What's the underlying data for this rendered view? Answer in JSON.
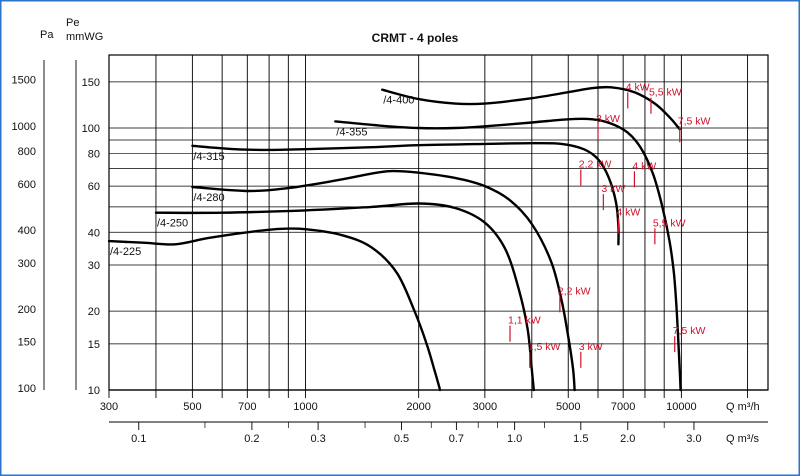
{
  "chart_data": {
    "type": "line",
    "title": "CRMT  -  4 poles",
    "x_axis": {
      "label": "Q m³/h",
      "scale": "log",
      "range": [
        300,
        17000
      ],
      "ticks": [
        300,
        500,
        700,
        1000,
        2000,
        3000,
        5000,
        7000,
        10000
      ],
      "tick_labels": [
        "300",
        "500",
        "700",
        "1000",
        "2000",
        "3000",
        "5000",
        "7000",
        "10000"
      ]
    },
    "x2_axis": {
      "label": "Q m³/s",
      "scale": "log",
      "ticks": [
        0.1,
        0.2,
        0.3,
        0.5,
        0.7,
        1.0,
        1.5,
        2.0,
        3.0
      ],
      "tick_labels": [
        "0.1",
        "0.2",
        "0.3",
        "0.5",
        "0.7",
        "1.0",
        "1.5",
        "2.0",
        "3.0"
      ]
    },
    "y_axis": {
      "label": "Pe mmWG",
      "scale": "log",
      "range": [
        10,
        190
      ],
      "ticks": [
        10,
        15,
        20,
        30,
        40,
        60,
        80,
        100,
        150
      ],
      "tick_labels": [
        "10",
        "15",
        "20",
        "30",
        "40",
        "60",
        "80",
        "100",
        "150"
      ]
    },
    "y2_axis": {
      "label": "Pa",
      "ticks": [
        100,
        150,
        200,
        300,
        400,
        600,
        800,
        1000,
        1500
      ],
      "tick_labels": [
        "100",
        "150",
        "200",
        "300",
        "400",
        "600",
        "800",
        "1000",
        "1500"
      ]
    },
    "grid": true,
    "series": [
      {
        "name": "/4-225",
        "points": [
          [
            300,
            37
          ],
          [
            370,
            36.5
          ],
          [
            450,
            36
          ],
          [
            550,
            38
          ],
          [
            700,
            40
          ],
          [
            850,
            41.2
          ],
          [
            1000,
            41.1
          ],
          [
            1250,
            39
          ],
          [
            1500,
            35
          ],
          [
            1750,
            28
          ],
          [
            1950,
            20
          ],
          [
            2100,
            15
          ],
          [
            2200,
            12
          ],
          [
            2280,
            10
          ]
        ]
      },
      {
        "name": "/4-250",
        "points": [
          [
            400,
            47.5
          ],
          [
            600,
            47.5
          ],
          [
            1000,
            48.5
          ],
          [
            1500,
            50
          ],
          [
            2000,
            51.5
          ],
          [
            2500,
            49.5
          ],
          [
            3000,
            43.5
          ],
          [
            3400,
            34.5
          ],
          [
            3700,
            24
          ],
          [
            3900,
            17
          ],
          [
            4000,
            12
          ],
          [
            4050,
            10
          ]
        ]
      },
      {
        "name": "/4-280",
        "points": [
          [
            500,
            59.5
          ],
          [
            700,
            57.5
          ],
          [
            900,
            59
          ],
          [
            1200,
            63
          ],
          [
            1500,
            67
          ],
          [
            1700,
            68.5
          ],
          [
            2000,
            67.5
          ],
          [
            2500,
            64.5
          ],
          [
            3000,
            60
          ],
          [
            3500,
            53
          ],
          [
            4000,
            43
          ],
          [
            4500,
            31
          ],
          [
            4800,
            22
          ],
          [
            5000,
            16
          ],
          [
            5150,
            12
          ],
          [
            5200,
            10
          ]
        ]
      },
      {
        "name": "/4-315",
        "points": [
          [
            500,
            85.5
          ],
          [
            650,
            83
          ],
          [
            800,
            82.5
          ],
          [
            1000,
            83
          ],
          [
            1500,
            84.5
          ],
          [
            2000,
            86
          ],
          [
            3000,
            87
          ],
          [
            4000,
            87.5
          ],
          [
            4800,
            87
          ],
          [
            5500,
            83
          ],
          [
            6000,
            76
          ],
          [
            6400,
            65
          ],
          [
            6700,
            52
          ],
          [
            6800,
            42
          ],
          [
            6800,
            36
          ]
        ]
      },
      {
        "name": "/4-355",
        "points": [
          [
            1200,
            106
          ],
          [
            1600,
            102
          ],
          [
            2000,
            100
          ],
          [
            2500,
            100
          ],
          [
            3000,
            101.5
          ],
          [
            4000,
            105
          ],
          [
            5000,
            108
          ],
          [
            5800,
            108
          ],
          [
            6500,
            104
          ],
          [
            7200,
            96
          ],
          [
            7800,
            84
          ],
          [
            8400,
            67
          ],
          [
            8900,
            50
          ],
          [
            9300,
            37
          ],
          [
            9550,
            28
          ],
          [
            9700,
            21
          ],
          [
            9800,
            16
          ],
          [
            9900,
            12
          ],
          [
            9950,
            10
          ]
        ]
      },
      {
        "name": "/4-400",
        "points": [
          [
            1600,
            140
          ],
          [
            2000,
            129
          ],
          [
            2500,
            124
          ],
          [
            3000,
            124
          ],
          [
            4000,
            130
          ],
          [
            5000,
            137
          ],
          [
            5800,
            142
          ],
          [
            6500,
            143
          ],
          [
            7500,
            137
          ],
          [
            8500,
            124
          ],
          [
            9300,
            110
          ],
          [
            9900,
            99
          ]
        ]
      }
    ],
    "power_labels": [
      {
        "text": "1,1 kW",
        "x": 3500,
        "y": 17
      },
      {
        "text": "1,5 kW",
        "x": 3950,
        "y": 13.5
      },
      {
        "text": "2,2 kW",
        "x": 4750,
        "y": 22
      },
      {
        "text": "2,2 kW",
        "x": 5400,
        "y": 67
      },
      {
        "text": "3 kW",
        "x": 5400,
        "y": 13.5
      },
      {
        "text": "3 kW",
        "x": 6200,
        "y": 54
      },
      {
        "text": "3 kW",
        "x": 6000,
        "y": 100
      },
      {
        "text": "4 kW",
        "x": 6800,
        "y": 44
      },
      {
        "text": "4 kW",
        "x": 7500,
        "y": 66
      },
      {
        "text": "4 kW",
        "x": 7200,
        "y": 132
      },
      {
        "text": "5,5 kW",
        "x": 8500,
        "y": 40
      },
      {
        "text": "5,5 kW",
        "x": 8300,
        "y": 126
      },
      {
        "text": "7,5 kW",
        "x": 9600,
        "y": 15.5
      },
      {
        "text": "7,5 kW",
        "x": 9900,
        "y": 98
      }
    ]
  }
}
